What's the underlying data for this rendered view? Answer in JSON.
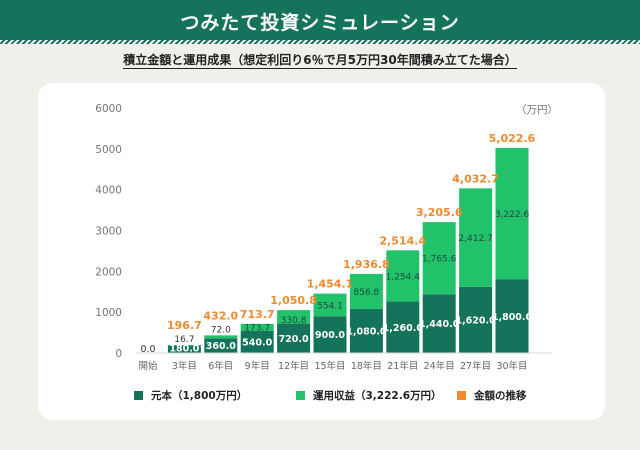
{
  "header": {
    "title": "つみたて投資シミュレーション"
  },
  "subtitle": "積立金額と運用成果（想定利回り6％で月5万円30年間積み立てた場合）",
  "colors": {
    "principal": "#14735a",
    "profit": "#22c26a",
    "total": "#f08a2e"
  },
  "legend": [
    {
      "label": "元本（1,800万円）",
      "color_key": "principal"
    },
    {
      "label": "運用収益（3,222.6万円）",
      "color_key": "profit"
    },
    {
      "label": "金額の推移",
      "color_key": "total"
    }
  ],
  "chart_data": {
    "type": "bar",
    "stacked": true,
    "unit_label": "（万円）",
    "categories": [
      "開始",
      "3年目",
      "6年目",
      "9年目",
      "12年目",
      "15年目",
      "18年目",
      "21年目",
      "24年目",
      "27年目",
      "30年目"
    ],
    "series": [
      {
        "name": "元本",
        "values": [
          0,
          180.0,
          360.0,
          540.0,
          720.0,
          900.0,
          1080.0,
          1260.0,
          1440.0,
          1620.0,
          1800.0
        ],
        "labels": [
          "",
          "180.0",
          "360.0",
          "540.0",
          "720.0",
          "900.0",
          "1,080.0",
          "1,260.0",
          "1,440.0",
          "1,620.0",
          "1,800.0"
        ]
      },
      {
        "name": "運用収益",
        "values": [
          0,
          16.7,
          72.0,
          173.7,
          330.8,
          554.1,
          856.8,
          1254.4,
          1765.6,
          2412.7,
          3222.6
        ],
        "labels": [
          "",
          "16.7",
          "72.0",
          "173.7",
          "330.8",
          "554.1",
          "856.8",
          "1,254.4",
          "1,765.6",
          "2,412.7",
          "3,222.6"
        ]
      }
    ],
    "totals": [
      "0.0",
      "196.7",
      "432.0",
      "713.7",
      "1,050.8",
      "1,454.1",
      "1,936.8",
      "2,514.4",
      "3,205.6",
      "4,032.7",
      "5,022.6"
    ],
    "yticks": [
      0,
      1000,
      2000,
      3000,
      4000,
      5000,
      6000
    ],
    "ylim": [
      0,
      6000
    ],
    "grid": false
  }
}
